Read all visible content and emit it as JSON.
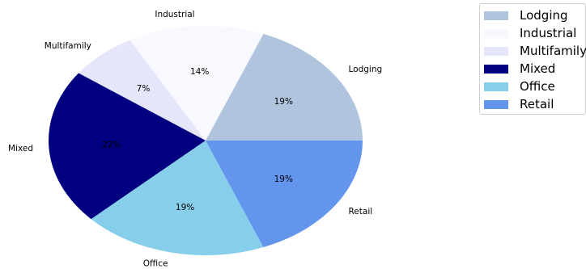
{
  "chart_data": {
    "type": "pie",
    "categories": [
      "Lodging",
      "Industrial",
      "Multifamily",
      "Mixed",
      "Office",
      "Retail"
    ],
    "values": [
      19,
      14,
      7,
      22,
      19,
      19
    ],
    "labels": [
      "19%",
      "14%",
      "7%",
      "22%",
      "19%",
      "19%"
    ],
    "colors": [
      "#b0c4de",
      "#f8f8ff",
      "#e6e6fa",
      "#000080",
      "#87ceeb",
      "#6495ed"
    ],
    "start_angle_deg": 0,
    "direction": "counterclockwise",
    "legend_position": "top-right"
  },
  "legend": {
    "items": [
      {
        "label": "Lodging",
        "color": "#b0c4de"
      },
      {
        "label": "Industrial",
        "color": "#f8f8ff"
      },
      {
        "label": "Multifamily",
        "color": "#e6e6fa"
      },
      {
        "label": "Mixed",
        "color": "#000080"
      },
      {
        "label": "Office",
        "color": "#87ceeb"
      },
      {
        "label": "Retail",
        "color": "#6495ed"
      }
    ]
  }
}
